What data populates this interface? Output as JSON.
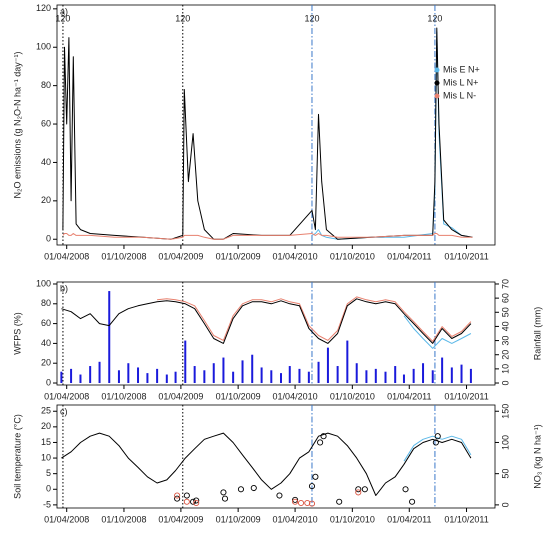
{
  "chart_data": [
    {
      "type": "line",
      "panel": "a)",
      "ylabel": "N₂O emissions (g N₂O-N ha⁻¹ day⁻¹)",
      "xlim": [
        "2008-03-01",
        "2011-12-31"
      ],
      "xticks": [
        {
          "value": "2008-04-01",
          "label": "01/04/2008"
        },
        {
          "value": "2008-10-01",
          "label": "01/10/2008"
        },
        {
          "value": "2009-04-01",
          "label": "01/04/2009"
        },
        {
          "value": "2009-10-01",
          "label": "01/10/2009"
        },
        {
          "value": "2010-04-01",
          "label": "01/04/2010"
        },
        {
          "value": "2010-10-01",
          "label": "01/10/2010"
        },
        {
          "value": "2011-04-01",
          "label": "01/04/2011"
        },
        {
          "value": "2011-10-01",
          "label": "01/10/2011"
        }
      ],
      "ylim": [
        -3,
        122
      ],
      "yticks": [
        0,
        20,
        40,
        60,
        80,
        100,
        120
      ],
      "legend": "right",
      "vlines": [
        {
          "x": "2008-03-20",
          "label": "120",
          "color": "#000000",
          "dash": "dotted"
        },
        {
          "x": "2009-04-07",
          "label": "120",
          "color": "#000000",
          "dash": "dotted"
        },
        {
          "x": "2010-05-25",
          "label": "120",
          "color": "#3a78c9",
          "dash": "dashdot"
        },
        {
          "x": "2011-06-22",
          "label": "120",
          "color": "#3a78c9",
          "dash": "dashdot"
        }
      ],
      "x": [
        "2008-03-20",
        "2008-03-25",
        "2008-04-01",
        "2008-04-08",
        "2008-04-15",
        "2008-04-22",
        "2008-05-01",
        "2008-05-15",
        "2008-06-15",
        "2008-09-01",
        "2008-12-01",
        "2009-03-01",
        "2009-04-07",
        "2009-04-12",
        "2009-04-25",
        "2009-05-10",
        "2009-05-25",
        "2009-06-15",
        "2009-07-15",
        "2009-08-15",
        "2009-09-15",
        "2009-12-15",
        "2010-03-15",
        "2010-05-25",
        "2010-06-05",
        "2010-06-15",
        "2010-06-25",
        "2010-07-10",
        "2010-08-15",
        "2010-12-01",
        "2011-03-15",
        "2011-06-15",
        "2011-06-22",
        "2011-06-28",
        "2011-07-05",
        "2011-07-20",
        "2011-08-15",
        "2011-09-15",
        "2011-10-20"
      ],
      "series": [
        {
          "name": "Mis E N+",
          "color": "#5bb8e8",
          "values": [
            null,
            null,
            null,
            null,
            null,
            null,
            null,
            null,
            null,
            null,
            null,
            null,
            null,
            null,
            null,
            null,
            null,
            null,
            null,
            null,
            null,
            null,
            null,
            2,
            3,
            5,
            2,
            1,
            0,
            1,
            1,
            3,
            25,
            108,
            55,
            8,
            6,
            2,
            1
          ]
        },
        {
          "name": "Mis L N+",
          "color": "#000000",
          "values": [
            5,
            100,
            60,
            105,
            20,
            95,
            8,
            5,
            3,
            2,
            1,
            0,
            2,
            78,
            30,
            55,
            20,
            5,
            0,
            0,
            3,
            2,
            2,
            15,
            5,
            65,
            30,
            5,
            0,
            1,
            2,
            2,
            30,
            110,
            60,
            10,
            5,
            2,
            1
          ]
        },
        {
          "name": "Mis L N-",
          "color": "#e8816f",
          "values": [
            2,
            3,
            3,
            2,
            2,
            3,
            2,
            2,
            2,
            1,
            1,
            0,
            1,
            2,
            2,
            2,
            2,
            1,
            0,
            0,
            2,
            2,
            2,
            3,
            2,
            3,
            2,
            2,
            1,
            1,
            2,
            2,
            3,
            3,
            2,
            2,
            2,
            1,
            1
          ]
        }
      ]
    },
    {
      "type": "line",
      "panel": "b)",
      "ylabel": "WFPS (%)",
      "y2label": "Rainfall (mm)",
      "xlim": [
        "2008-03-01",
        "2011-12-31"
      ],
      "xticks": [
        {
          "value": "2008-04-01",
          "label": "01/04/2008"
        },
        {
          "value": "2008-10-01",
          "label": "01/10/2008"
        },
        {
          "value": "2009-04-01",
          "label": "01/04/2009"
        },
        {
          "value": "2009-10-01",
          "label": "01/10/2009"
        },
        {
          "value": "2010-04-01",
          "label": "01/04/2010"
        },
        {
          "value": "2010-10-01",
          "label": "01/10/2010"
        },
        {
          "value": "2011-04-01",
          "label": "01/04/2011"
        },
        {
          "value": "2011-10-01",
          "label": "01/10/2011"
        }
      ],
      "ylim": [
        -2,
        102
      ],
      "yticks": [
        0,
        20,
        40,
        60,
        80,
        100
      ],
      "y2lim": [
        -1.4,
        71.4
      ],
      "y2ticks": [
        0,
        10,
        20,
        30,
        40,
        50,
        60,
        70
      ],
      "vlines": [
        {
          "x": "2008-03-20",
          "color": "#000000",
          "dash": "dotted"
        },
        {
          "x": "2009-04-07",
          "color": "#000000",
          "dash": "dotted"
        },
        {
          "x": "2010-05-25",
          "color": "#3a78c9",
          "dash": "dashdot"
        },
        {
          "x": "2011-06-22",
          "color": "#3a78c9",
          "dash": "dashdot"
        }
      ],
      "x": [
        "2008-03-15",
        "2008-04-15",
        "2008-05-15",
        "2008-06-15",
        "2008-07-15",
        "2008-08-15",
        "2008-09-15",
        "2008-10-15",
        "2008-11-15",
        "2008-12-15",
        "2009-01-15",
        "2009-02-15",
        "2009-03-15",
        "2009-04-15",
        "2009-05-15",
        "2009-06-15",
        "2009-07-15",
        "2009-08-15",
        "2009-09-15",
        "2009-10-15",
        "2009-11-15",
        "2009-12-15",
        "2010-01-15",
        "2010-02-15",
        "2010-03-15",
        "2010-04-15",
        "2010-05-15",
        "2010-06-15",
        "2010-07-15",
        "2010-08-15",
        "2010-09-15",
        "2010-10-15",
        "2010-11-15",
        "2010-12-15",
        "2011-01-15",
        "2011-02-15",
        "2011-03-15",
        "2011-04-15",
        "2011-05-15",
        "2011-06-15",
        "2011-07-15",
        "2011-08-15",
        "2011-09-15",
        "2011-10-15"
      ],
      "series": [
        {
          "type": "bar",
          "axis": "y2",
          "color": "#1a1adb",
          "values": [
            8,
            10,
            6,
            12,
            15,
            65,
            9,
            14,
            11,
            7,
            10,
            6,
            8,
            30,
            12,
            9,
            14,
            18,
            8,
            16,
            20,
            11,
            9,
            7,
            12,
            10,
            8,
            15,
            25,
            12,
            30,
            14,
            9,
            10,
            8,
            12,
            6,
            10,
            14,
            9,
            18,
            11,
            13,
            10
          ]
        },
        {
          "color": "#e8816f",
          "values": [
            null,
            null,
            null,
            null,
            null,
            null,
            null,
            null,
            null,
            null,
            84,
            85,
            84,
            82,
            78,
            63,
            48,
            43,
            68,
            80,
            84,
            84,
            82,
            85,
            82,
            80,
            58,
            48,
            43,
            53,
            80,
            87,
            84,
            82,
            84,
            82,
            72,
            62,
            52,
            42,
            57,
            47,
            52,
            62
          ]
        },
        {
          "color": "#5bb8e8",
          "values": [
            null,
            null,
            null,
            null,
            null,
            null,
            null,
            null,
            null,
            null,
            null,
            null,
            null,
            null,
            null,
            null,
            null,
            null,
            null,
            null,
            null,
            null,
            null,
            null,
            null,
            null,
            null,
            null,
            null,
            null,
            null,
            null,
            null,
            null,
            null,
            null,
            68,
            55,
            45,
            35,
            45,
            40,
            45,
            50
          ]
        },
        {
          "color": "#000000",
          "values": [
            75,
            72,
            65,
            70,
            60,
            58,
            70,
            75,
            78,
            80,
            82,
            83,
            82,
            80,
            75,
            60,
            45,
            40,
            65,
            78,
            82,
            82,
            80,
            83,
            80,
            78,
            55,
            45,
            40,
            50,
            78,
            85,
            82,
            80,
            82,
            80,
            70,
            60,
            50,
            40,
            55,
            45,
            50,
            60
          ]
        }
      ]
    },
    {
      "type": "line",
      "panel": "c)",
      "ylabel": "Soil temperature (°C)",
      "y2label": "NO₃ (kg N ha⁻¹)",
      "xlim": [
        "2008-03-01",
        "2011-12-31"
      ],
      "xticks": [
        {
          "value": "2008-04-01",
          "label": "01/04/2008"
        },
        {
          "value": "2008-10-01",
          "label": "01/10/2008"
        },
        {
          "value": "2009-04-01",
          "label": "01/04/2009"
        },
        {
          "value": "2009-10-01",
          "label": "01/10/2009"
        },
        {
          "value": "2010-04-01",
          "label": "01/04/2010"
        },
        {
          "value": "2010-10-01",
          "label": "01/10/2010"
        },
        {
          "value": "2011-04-01",
          "label": "01/04/2011"
        },
        {
          "value": "2011-10-01",
          "label": "01/10/2011"
        }
      ],
      "ylim": [
        -6,
        27
      ],
      "yticks": [
        -5,
        0,
        5,
        10,
        15,
        20,
        25
      ],
      "y2lim": [
        -5,
        160
      ],
      "y2ticks": [
        0,
        50,
        100,
        150
      ],
      "vlines": [
        {
          "x": "2008-03-20",
          "color": "#000000",
          "dash": "dotted"
        },
        {
          "x": "2009-04-07",
          "color": "#000000",
          "dash": "dotted"
        },
        {
          "x": "2010-05-25",
          "color": "#3a78c9",
          "dash": "dashdot"
        },
        {
          "x": "2011-06-22",
          "color": "#3a78c9",
          "dash": "dashdot"
        }
      ],
      "x": [
        "2008-03-15",
        "2008-04-15",
        "2008-05-15",
        "2008-06-15",
        "2008-07-15",
        "2008-08-15",
        "2008-09-15",
        "2008-10-15",
        "2008-11-15",
        "2008-12-15",
        "2009-01-15",
        "2009-02-15",
        "2009-03-15",
        "2009-04-15",
        "2009-05-15",
        "2009-06-15",
        "2009-07-15",
        "2009-08-15",
        "2009-09-15",
        "2009-10-15",
        "2009-11-15",
        "2009-12-15",
        "2010-01-15",
        "2010-02-15",
        "2010-03-15",
        "2010-04-15",
        "2010-05-15",
        "2010-06-15",
        "2010-07-15",
        "2010-08-15",
        "2010-09-15",
        "2010-10-15",
        "2010-11-15",
        "2010-12-15",
        "2011-01-15",
        "2011-02-15",
        "2011-03-15",
        "2011-04-15",
        "2011-05-15",
        "2011-06-15",
        "2011-07-15",
        "2011-08-15",
        "2011-09-15",
        "2011-10-15"
      ],
      "series": [
        {
          "color": "#5bb8e8",
          "values": [
            null,
            null,
            null,
            null,
            null,
            null,
            null,
            null,
            null,
            null,
            null,
            null,
            null,
            null,
            null,
            null,
            null,
            null,
            null,
            null,
            null,
            null,
            null,
            null,
            null,
            null,
            null,
            null,
            null,
            null,
            null,
            null,
            null,
            null,
            null,
            null,
            9,
            14,
            16,
            17,
            16,
            17,
            16,
            11
          ]
        },
        {
          "color": "#000000",
          "values": [
            10,
            12,
            15,
            17,
            18,
            17,
            14,
            10,
            7,
            4,
            2,
            3,
            6,
            10,
            13,
            16,
            17,
            18,
            15,
            11,
            7,
            3,
            0,
            2,
            5,
            10,
            12,
            17,
            18,
            17,
            14,
            10,
            5,
            -2,
            2,
            4,
            8,
            13,
            15,
            16,
            15,
            16,
            15,
            10
          ]
        },
        {
          "type": "scatter",
          "axis": "y2",
          "color": "#000000",
          "x": [
            "2009-03-20",
            "2009-04-20",
            "2009-05-10",
            "2009-05-20",
            "2009-08-15",
            "2009-08-20",
            "2009-10-10",
            "2009-11-20",
            "2010-02-10",
            "2010-04-01",
            "2010-05-25",
            "2010-06-05",
            "2010-06-20",
            "2010-07-01",
            "2010-08-20",
            "2010-10-20",
            "2010-11-10",
            "2011-03-20",
            "2011-04-10",
            "2011-06-25",
            "2011-07-01"
          ],
          "values": [
            10,
            15,
            5,
            7,
            20,
            10,
            25,
            27,
            15,
            8,
            30,
            45,
            100,
            110,
            5,
            25,
            25,
            25,
            5,
            100,
            110
          ]
        },
        {
          "type": "scatter",
          "axis": "y2",
          "color": "#d9533f",
          "x": [
            "2009-03-20",
            "2009-04-20",
            "2009-05-20",
            "2010-04-01",
            "2010-04-20",
            "2010-05-10",
            "2010-05-25",
            "2010-10-20"
          ],
          "values": [
            15,
            5,
            3,
            5,
            3,
            3,
            2,
            20
          ]
        }
      ]
    }
  ]
}
